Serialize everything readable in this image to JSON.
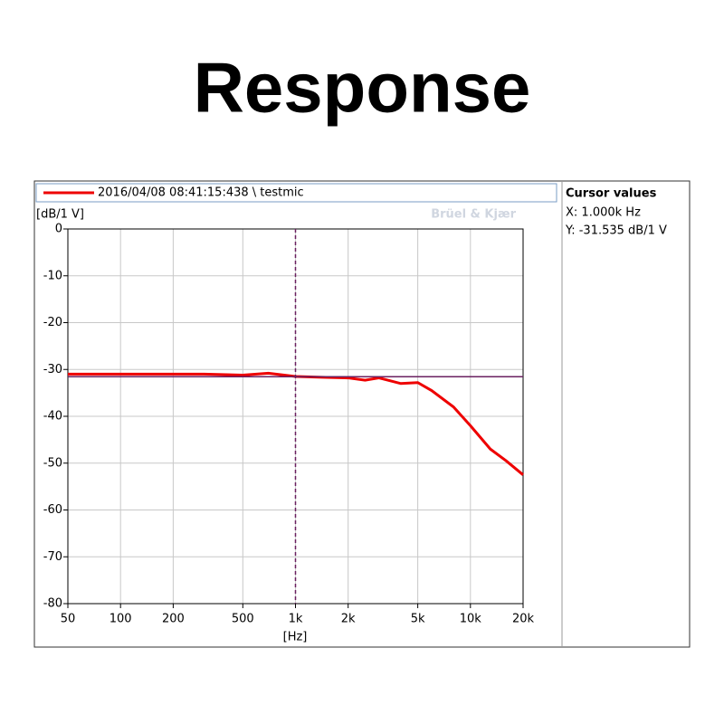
{
  "chart_data": {
    "type": "line",
    "title": "Response",
    "legend_label": "2016/04/08 08:41:15:438 \\ testmic",
    "watermark": "Brüel & Kjær",
    "ylabel": "[dB/1 V]",
    "xlabel": "[Hz]",
    "x_scale": "log",
    "grid": true,
    "xlim": [
      50,
      20000
    ],
    "xticks": [
      50,
      100,
      200,
      500,
      {
        "value": 1000,
        "label": "1k"
      },
      {
        "value": 2000,
        "label": "2k"
      },
      {
        "value": 5000,
        "label": "5k"
      },
      {
        "value": 10000,
        "label": "10k"
      },
      {
        "value": 20000,
        "label": "20k"
      }
    ],
    "ylim": [
      -80,
      0
    ],
    "yticks": [
      0,
      -10,
      -20,
      -30,
      -40,
      -50,
      -60,
      -70,
      -80
    ],
    "x": [
      50,
      100,
      200,
      300,
      500,
      700,
      1000,
      1500,
      2000,
      2500,
      3000,
      4000,
      5000,
      6000,
      8000,
      10000,
      13000,
      16000,
      20000
    ],
    "series": [
      {
        "name": "2016/04/08 08:41:15:438 \\ testmic",
        "color": "#ee0000",
        "values": [
          -31,
          -31,
          -31,
          -31,
          -31.2,
          -30.8,
          -31.5,
          -31.7,
          -31.8,
          -32.3,
          -31.8,
          -33,
          -32.8,
          -34.5,
          -38,
          -42,
          -47,
          -49.5,
          -52.5
        ]
      }
    ],
    "cursor": {
      "x": 1000,
      "y": -31.535,
      "color": "#6a2060"
    },
    "cursor_values": {
      "title": "Cursor values",
      "x_text": "X:  1.000k Hz",
      "y_text": "Y:  -31.535 dB/1 V"
    }
  }
}
